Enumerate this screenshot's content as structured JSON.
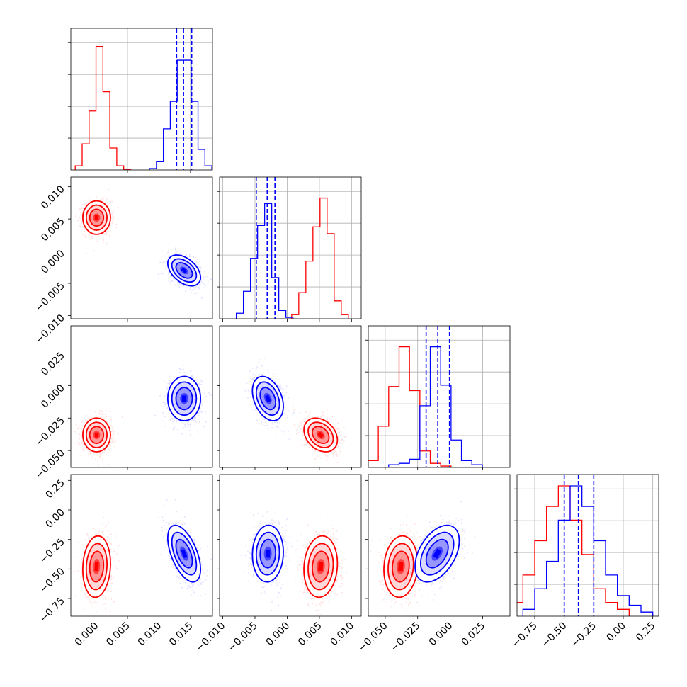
{
  "chart_data": {
    "type": "corner",
    "title": "",
    "num_params": 4,
    "colors": {
      "red": "#ff0000",
      "blue": "#0000ff",
      "grid": "#b0b0b0"
    },
    "params": [
      {
        "range": [
          -0.004,
          0.0185
        ],
        "ticks": [
          0.0,
          0.005,
          0.01,
          0.015
        ],
        "tick_labels": [
          "0.000",
          "0.005",
          "0.010",
          "0.015"
        ]
      },
      {
        "range": [
          -0.0105,
          0.0115
        ],
        "ticks": [
          -0.01,
          -0.005,
          0.0,
          0.005,
          0.01
        ],
        "tick_labels": [
          "−0.010",
          "−0.005",
          "0.000",
          "0.005",
          "0.010"
        ]
      },
      {
        "range": [
          -0.063,
          0.046
        ],
        "ticks": [
          -0.05,
          -0.025,
          0.0,
          0.025
        ],
        "tick_labels": [
          "−0.050",
          "−0.025",
          "0.000",
          "0.025"
        ]
      },
      {
        "range": [
          -0.9,
          0.3
        ],
        "ticks": [
          -0.75,
          -0.5,
          -0.25,
          0.0,
          0.25
        ],
        "tick_labels": [
          "−0.75",
          "−0.50",
          "−0.25",
          "0.00",
          "0.25"
        ]
      }
    ],
    "series": [
      {
        "color": "red",
        "hist": [
          {
            "edges": [
              -0.0033,
              -0.0022,
              -0.0011,
              0.0,
              0.0011,
              0.0022,
              0.0033,
              0.0044,
              0.0055
            ],
            "counts": [
              0.03,
              0.19,
              0.43,
              0.9,
              0.57,
              0.16,
              0.03,
              0.005
            ]
          },
          {
            "edges": [
              0.0007,
              0.0018,
              0.0029,
              0.004,
              0.0051,
              0.0062,
              0.0073,
              0.0084,
              0.0095
            ],
            "counts": [
              0.03,
              0.19,
              0.42,
              0.67,
              0.88,
              0.62,
              0.13,
              0.03
            ]
          },
          {
            "edges": [
              -0.0633,
              -0.0553,
              -0.0473,
              -0.0393,
              -0.0313,
              -0.0233,
              -0.0153,
              -0.0073,
              0.0007
            ],
            "counts": [
              0.05,
              0.3,
              0.59,
              0.88,
              0.56,
              0.12,
              0.03,
              0.01
            ]
          },
          {
            "edges": [
              -0.95,
              -0.85,
              -0.75,
              -0.65,
              -0.55,
              -0.45,
              -0.35,
              -0.25,
              -0.15,
              -0.05,
              0.05
            ],
            "counts": [
              0.1,
              0.3,
              0.55,
              0.8,
              0.95,
              0.7,
              0.45,
              0.2,
              0.1,
              0.05
            ]
          }
        ],
        "means": [
          0.0001,
          0.0052,
          -0.038,
          -0.48
        ],
        "sigmas": [
          0.0011,
          0.0013,
          0.0065,
          0.13
        ]
      },
      {
        "color": "blue",
        "hist": [
          {
            "edges": [
              0.0085,
              0.0096,
              0.0107,
              0.0118,
              0.0129,
              0.014,
              0.0151,
              0.0162,
              0.0173,
              0.0184
            ],
            "counts": [
              0.01,
              0.06,
              0.3,
              0.5,
              0.8,
              0.8,
              0.5,
              0.15,
              0.03
            ]
          },
          {
            "edges": [
              -0.0079,
              -0.0068,
              -0.0057,
              -0.0046,
              -0.0035,
              -0.0024,
              -0.0013,
              -0.0002,
              0.0009
            ],
            "counts": [
              0.04,
              0.2,
              0.44,
              0.68,
              0.84,
              0.3,
              0.06,
              0.01
            ]
          },
          {
            "edges": [
              -0.0473,
              -0.0393,
              -0.0313,
              -0.0233,
              -0.0153,
              -0.0073,
              0.0007,
              0.0087,
              0.0167,
              0.0247
            ],
            "counts": [
              0.02,
              0.03,
              0.06,
              0.45,
              0.88,
              0.6,
              0.2,
              0.05,
              0.02
            ]
          },
          {
            "edges": [
              -0.85,
              -0.75,
              -0.65,
              -0.55,
              -0.45,
              -0.35,
              -0.25,
              -0.15,
              -0.05,
              0.05,
              0.15,
              0.25
            ],
            "counts": [
              0.05,
              0.2,
              0.4,
              0.7,
              0.95,
              0.8,
              0.55,
              0.3,
              0.15,
              0.08,
              0.03
            ]
          }
        ],
        "quantiles": [
          [
            0.0128,
            0.0139,
            0.0152
          ],
          [
            -0.0048,
            -0.0031,
            -0.0019
          ],
          [
            -0.0185,
            -0.0095,
            -0.0005
          ],
          [
            -0.5,
            -0.38,
            -0.25
          ]
        ],
        "means": [
          0.014,
          -0.003,
          -0.01,
          -0.37
        ],
        "sigmas": [
          0.0013,
          0.0012,
          0.0085,
          0.12
        ]
      }
    ],
    "correlations": {
      "red": {
        "1-0": 0.0,
        "2-0": 0.0,
        "2-1": -0.3,
        "3-0": 0.1,
        "3-1": 0.1,
        "3-2": 0.1
      },
      "blue": {
        "1-0": -0.45,
        "2-0": 0.0,
        "2-1": -0.35,
        "3-0": -0.55,
        "3-1": 0.05,
        "3-2": 0.45
      }
    }
  }
}
